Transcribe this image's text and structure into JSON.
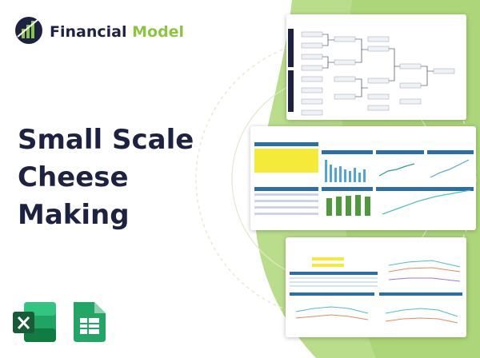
{
  "header": {
    "brand_first": "Financial",
    "brand_second": "Model"
  },
  "title": {
    "lines": [
      "Small Scale",
      "Cheese",
      "Making"
    ]
  }
}
